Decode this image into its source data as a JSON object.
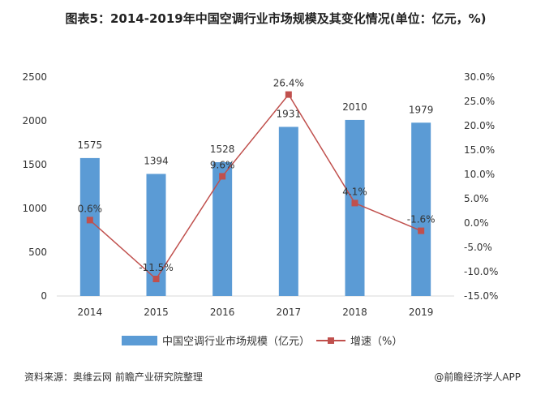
{
  "chart_data": {
    "type": "bar+line",
    "title": "图表5：2014-2019年中国空调行业市场规模及其变化情况(单位：亿元，%)",
    "categories": [
      "2014",
      "2015",
      "2016",
      "2017",
      "2018",
      "2019"
    ],
    "series": [
      {
        "name": "中国空调行业市场规模（亿元）",
        "type": "bar",
        "axis": "left",
        "values": [
          1575,
          1394,
          1528,
          1931,
          2010,
          1979
        ],
        "labels": [
          "1575",
          "1394",
          "1528",
          "1931",
          "2010",
          "1979"
        ]
      },
      {
        "name": "增速（%）",
        "type": "line",
        "axis": "right",
        "values": [
          0.6,
          -11.5,
          9.6,
          26.4,
          4.1,
          -1.6
        ],
        "labels": [
          "0.6%",
          "-11.5%",
          "9.6%",
          "26.4%",
          "4.1%",
          "-1.6%"
        ]
      }
    ],
    "y_left": {
      "min": 0,
      "max": 2500,
      "ticks": [
        0,
        500,
        1000,
        1500,
        2000,
        2500
      ],
      "tick_labels": [
        "0",
        "500",
        "1000",
        "1500",
        "2000",
        "2500"
      ]
    },
    "y_right": {
      "min": -15,
      "max": 30,
      "ticks": [
        -15,
        -10,
        -5,
        0,
        5,
        10,
        15,
        20,
        25,
        30
      ],
      "tick_labels": [
        "-15.0%",
        "-10.0%",
        "-5.0%",
        "0.0%",
        "5.0%",
        "10.0%",
        "15.0%",
        "20.0%",
        "25.0%",
        "30.0%"
      ]
    },
    "legend_position": "bottom",
    "grid": false
  },
  "colors": {
    "bar": "#5b9bd5",
    "line": "#c0504d",
    "axis": "#d9d9d9",
    "text": "#333333"
  },
  "legend": {
    "bar_label": "中国空调行业市场规模（亿元）",
    "line_label": "增速（%）"
  },
  "footer": {
    "source": "资料来源：奥维云网 前瞻产业研究院整理",
    "brand": "@前瞻经济学人APP"
  }
}
